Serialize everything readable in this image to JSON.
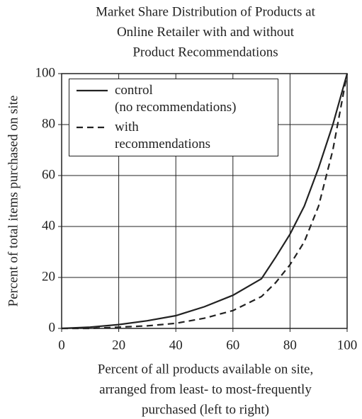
{
  "chart_data": {
    "type": "line",
    "title": [
      "Market Share Distribution of Products at",
      "Online Retailer with and without",
      "Product Recommendations"
    ],
    "xlabel": [
      "Percent of all products available on site,",
      "arranged from least- to most-frequently",
      "purchased (left to right)"
    ],
    "ylabel": "Percent of total items purchased on site",
    "x": [
      0,
      10,
      20,
      30,
      40,
      50,
      60,
      70,
      75,
      80,
      85,
      90,
      95,
      100
    ],
    "series": [
      {
        "name": "control\n(no recommendations)",
        "color": "#222222",
        "dash": "solid",
        "values": [
          0,
          0.5,
          1.5,
          3,
          5,
          8.5,
          13,
          19.5,
          28,
          37,
          48,
          63,
          80,
          100
        ]
      },
      {
        "name": "with\nrecommendations",
        "color": "#222222",
        "dash": "dashed",
        "values": [
          0,
          0,
          0.5,
          1,
          2,
          4,
          7,
          12.5,
          18,
          25,
          34,
          48,
          70,
          100
        ]
      }
    ],
    "xlim": [
      0,
      100
    ],
    "xticks": [
      0,
      20,
      40,
      60,
      80,
      100
    ],
    "ylim": [
      0,
      100
    ],
    "yticks": [
      0,
      20,
      40,
      60,
      80,
      100
    ],
    "grid": true,
    "legend": "upper left"
  }
}
